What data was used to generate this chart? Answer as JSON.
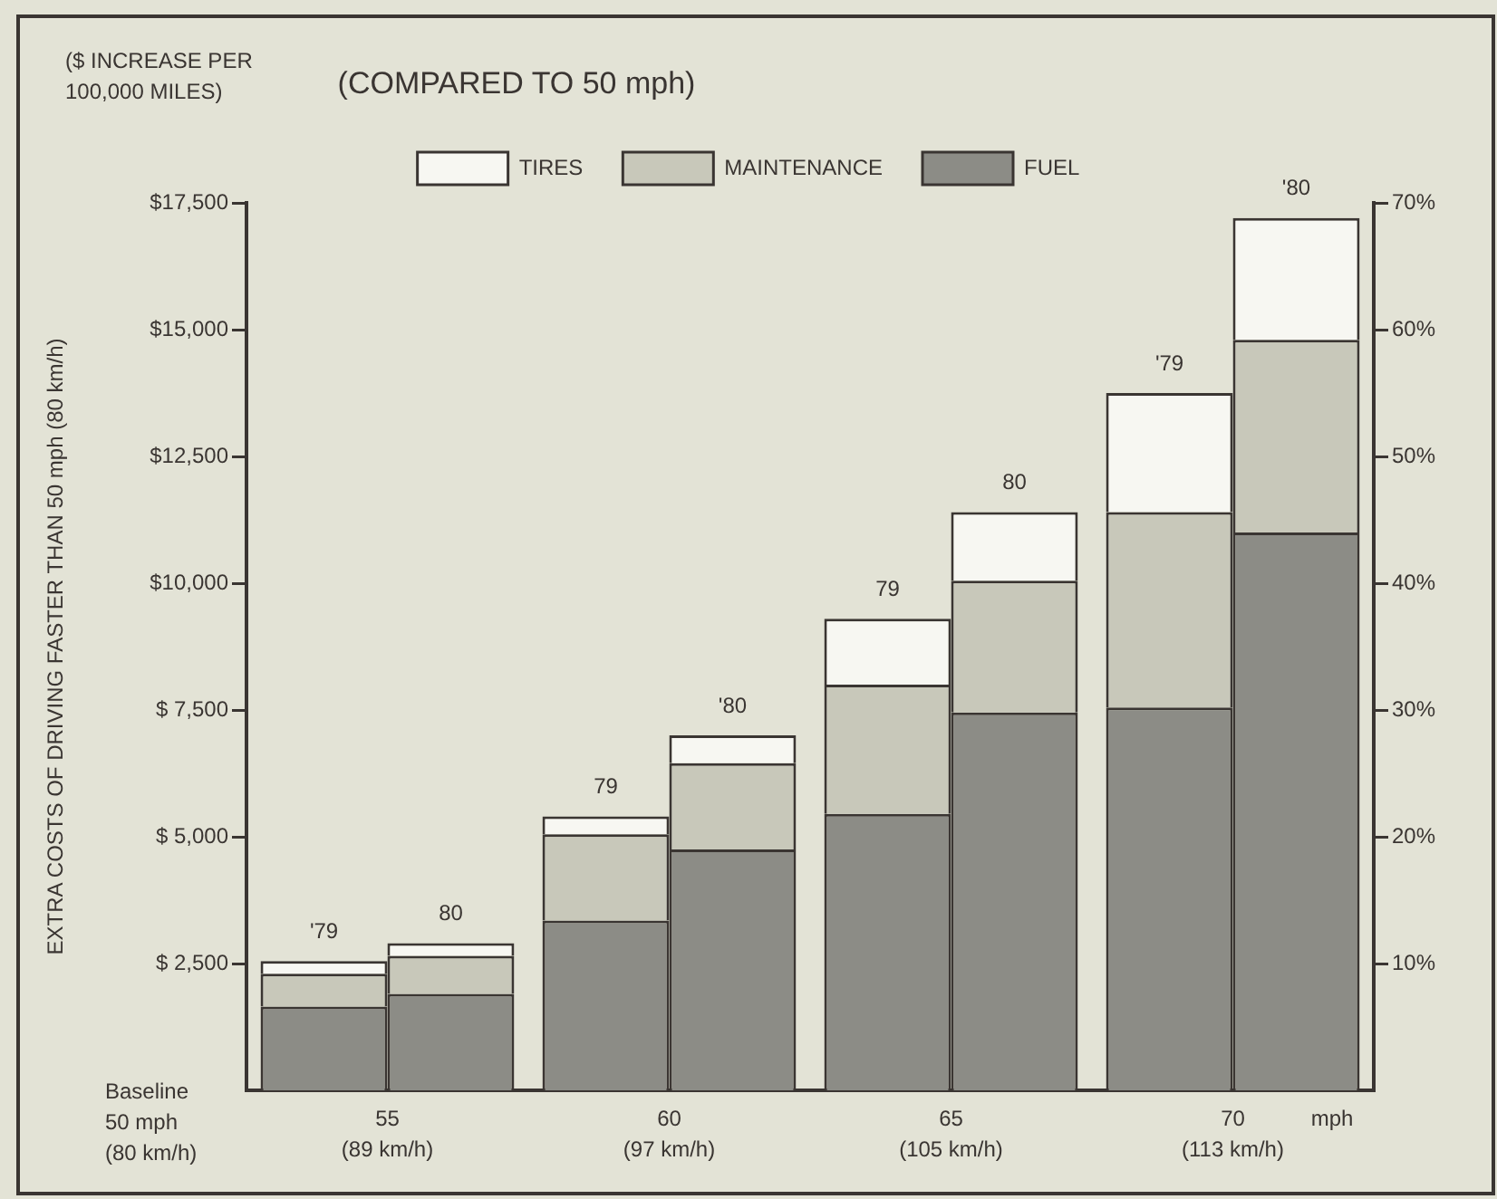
{
  "chart_data": {
    "type": "bar",
    "title": "(COMPARED TO 50 mph)",
    "ylabel": "EXTRA COSTS OF DRIVING FASTER THAN 50 mph (80 km/h)",
    "xlabel": "mph",
    "categories": [
      "'79",
      "80",
      "79",
      "'80",
      "79",
      "80",
      "'79",
      "'80"
    ],
    "stacked": true,
    "series": [
      {
        "name": "FUEL",
        "color": "#8c8c86",
        "values": [
          1650,
          1900,
          3350,
          4750,
          5450,
          7450,
          7550,
          11000
        ]
      },
      {
        "name": "MAINTENANCE",
        "color": "#c8c8ba",
        "values": [
          650,
          750,
          1700,
          1700,
          2550,
          2600,
          3850,
          3800
        ]
      },
      {
        "name": "TIRES",
        "color": "#f7f7f2",
        "values": [
          250,
          250,
          350,
          550,
          1300,
          1350,
          2350,
          2400
        ]
      }
    ],
    "ylim": [
      0,
      17500
    ],
    "yticks": [
      {
        "value": 2500,
        "label": "$ 2,500"
      },
      {
        "value": 5000,
        "label": "$ 5,000"
      },
      {
        "value": 7500,
        "label": "$ 7,500"
      },
      {
        "value": 10000,
        "label": "$10,000"
      },
      {
        "value": 12500,
        "label": "$12,500"
      },
      {
        "value": 15000,
        "label": "$15,000"
      },
      {
        "value": 17500,
        "label": "$17,500"
      }
    ],
    "y2lim": [
      0,
      70
    ],
    "y2ticks": [
      {
        "value": 10,
        "label": "10%"
      },
      {
        "value": 20,
        "label": "20%"
      },
      {
        "value": 30,
        "label": "30%"
      },
      {
        "value": 40,
        "label": "40%"
      },
      {
        "value": 50,
        "label": "50%"
      },
      {
        "value": 60,
        "label": "60%"
      },
      {
        "value": 70,
        "label": "70%"
      }
    ],
    "grid": false,
    "legend": "top",
    "annotations": [
      "($ INCREASE PER\n100,000 MILES)",
      "Baseline\n50 mph\n(80 km/h)",
      "55\n(89 km/h)",
      "60\n(97 km/h)",
      "65\n(105 km/h)",
      "70\n(113 km/h)"
    ]
  }
}
